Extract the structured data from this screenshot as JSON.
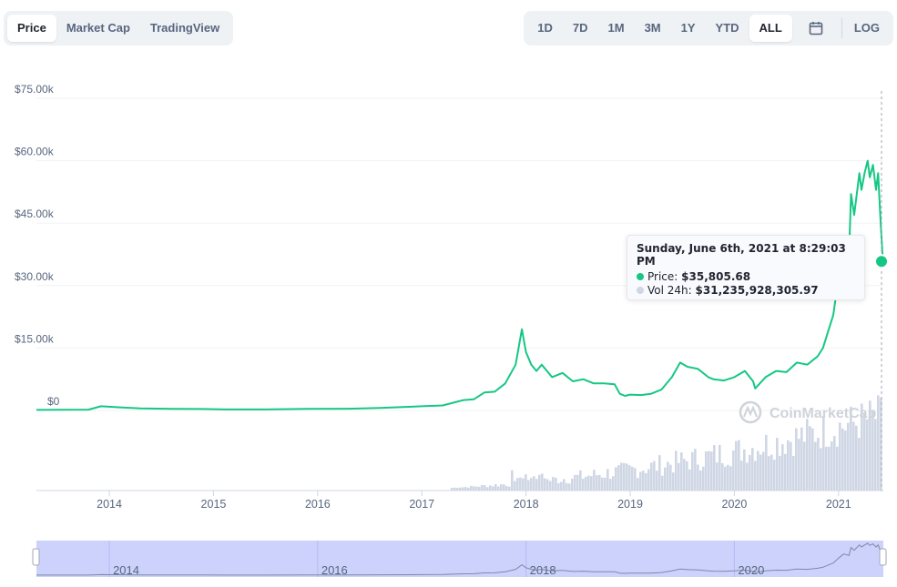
{
  "tabs": {
    "chart_type": [
      {
        "label": "Price",
        "active": true
      },
      {
        "label": "Market Cap",
        "active": false
      },
      {
        "label": "TradingView",
        "active": false
      }
    ],
    "ranges": [
      {
        "label": "1D",
        "active": false
      },
      {
        "label": "7D",
        "active": false
      },
      {
        "label": "1M",
        "active": false
      },
      {
        "label": "3M",
        "active": false
      },
      {
        "label": "1Y",
        "active": false
      },
      {
        "label": "YTD",
        "active": false
      },
      {
        "label": "ALL",
        "active": true
      }
    ],
    "calendar_icon": "calendar-icon",
    "log_label": "LOG"
  },
  "tooltip": {
    "date": "Sunday, June 6th, 2021 at 8:29:03 PM",
    "price_label": "Price:",
    "price_value": "$35,805.68",
    "volume_label": "Vol 24h:",
    "volume_value": "$31,235,928,305.97"
  },
  "watermark": "CoinMarketCap",
  "colors": {
    "price_line": "#16c784",
    "volume_bars": "#cfd6e4",
    "navigator_fill": "#c6cdfb",
    "active_tab_bg": "#ffffff",
    "tab_group_bg": "#eff2f5"
  },
  "chart_data": {
    "type": "line",
    "y_ticks": [
      "$0",
      "$15.00k",
      "$30.00k",
      "$45.00k",
      "$60.00k",
      "$75.00k"
    ],
    "x_ticks": [
      "2014",
      "2015",
      "2016",
      "2017",
      "2018",
      "2019",
      "2020",
      "2021"
    ],
    "ylim": [
      0,
      75000
    ],
    "x_range": [
      "2013-04",
      "2021-06"
    ],
    "grid": true,
    "price_series": {
      "name": "Price",
      "x": [
        2013.3,
        2013.8,
        2013.92,
        2014.05,
        2014.3,
        2014.6,
        2014.9,
        2015.1,
        2015.5,
        2015.9,
        2016.3,
        2016.6,
        2016.9,
        2017.0,
        2017.2,
        2017.4,
        2017.5,
        2017.6,
        2017.7,
        2017.8,
        2017.9,
        2017.96,
        2018.0,
        2018.05,
        2018.1,
        2018.15,
        2018.25,
        2018.35,
        2018.45,
        2018.55,
        2018.65,
        2018.75,
        2018.85,
        2018.9,
        2018.95,
        2019.0,
        2019.1,
        2019.2,
        2019.3,
        2019.4,
        2019.48,
        2019.55,
        2019.65,
        2019.75,
        2019.8,
        2019.9,
        2020.0,
        2020.1,
        2020.18,
        2020.2,
        2020.3,
        2020.4,
        2020.5,
        2020.6,
        2020.7,
        2020.8,
        2020.85,
        2020.9,
        2020.95,
        2021.0,
        2021.05,
        2021.1,
        2021.12,
        2021.15,
        2021.2,
        2021.22,
        2021.25,
        2021.28,
        2021.3,
        2021.33,
        2021.36,
        2021.38,
        2021.4,
        2021.42,
        2021.43
      ],
      "y": [
        130,
        200,
        1000,
        800,
        500,
        400,
        350,
        250,
        250,
        400,
        420,
        600,
        900,
        1000,
        1200,
        2500,
        2700,
        4300,
        4500,
        6500,
        11000,
        19500,
        14000,
        11000,
        9500,
        11000,
        8000,
        9000,
        7000,
        7500,
        6500,
        6500,
        6300,
        4000,
        3500,
        3800,
        3700,
        4000,
        5000,
        8000,
        11500,
        10500,
        10000,
        8000,
        7500,
        7200,
        8000,
        9500,
        7000,
        5300,
        8000,
        9500,
        9200,
        11500,
        11000,
        13000,
        15000,
        19000,
        23000,
        32000,
        40000,
        37000,
        52000,
        47000,
        57000,
        53000,
        57000,
        60000,
        56000,
        59000,
        53000,
        57000,
        47000,
        38000,
        35805
      ]
    },
    "volume_series": {
      "name": "Vol 24h",
      "unit": "relative"
    }
  },
  "navigator": {
    "labels": [
      "2014",
      "2016",
      "2018",
      "2020"
    ]
  }
}
